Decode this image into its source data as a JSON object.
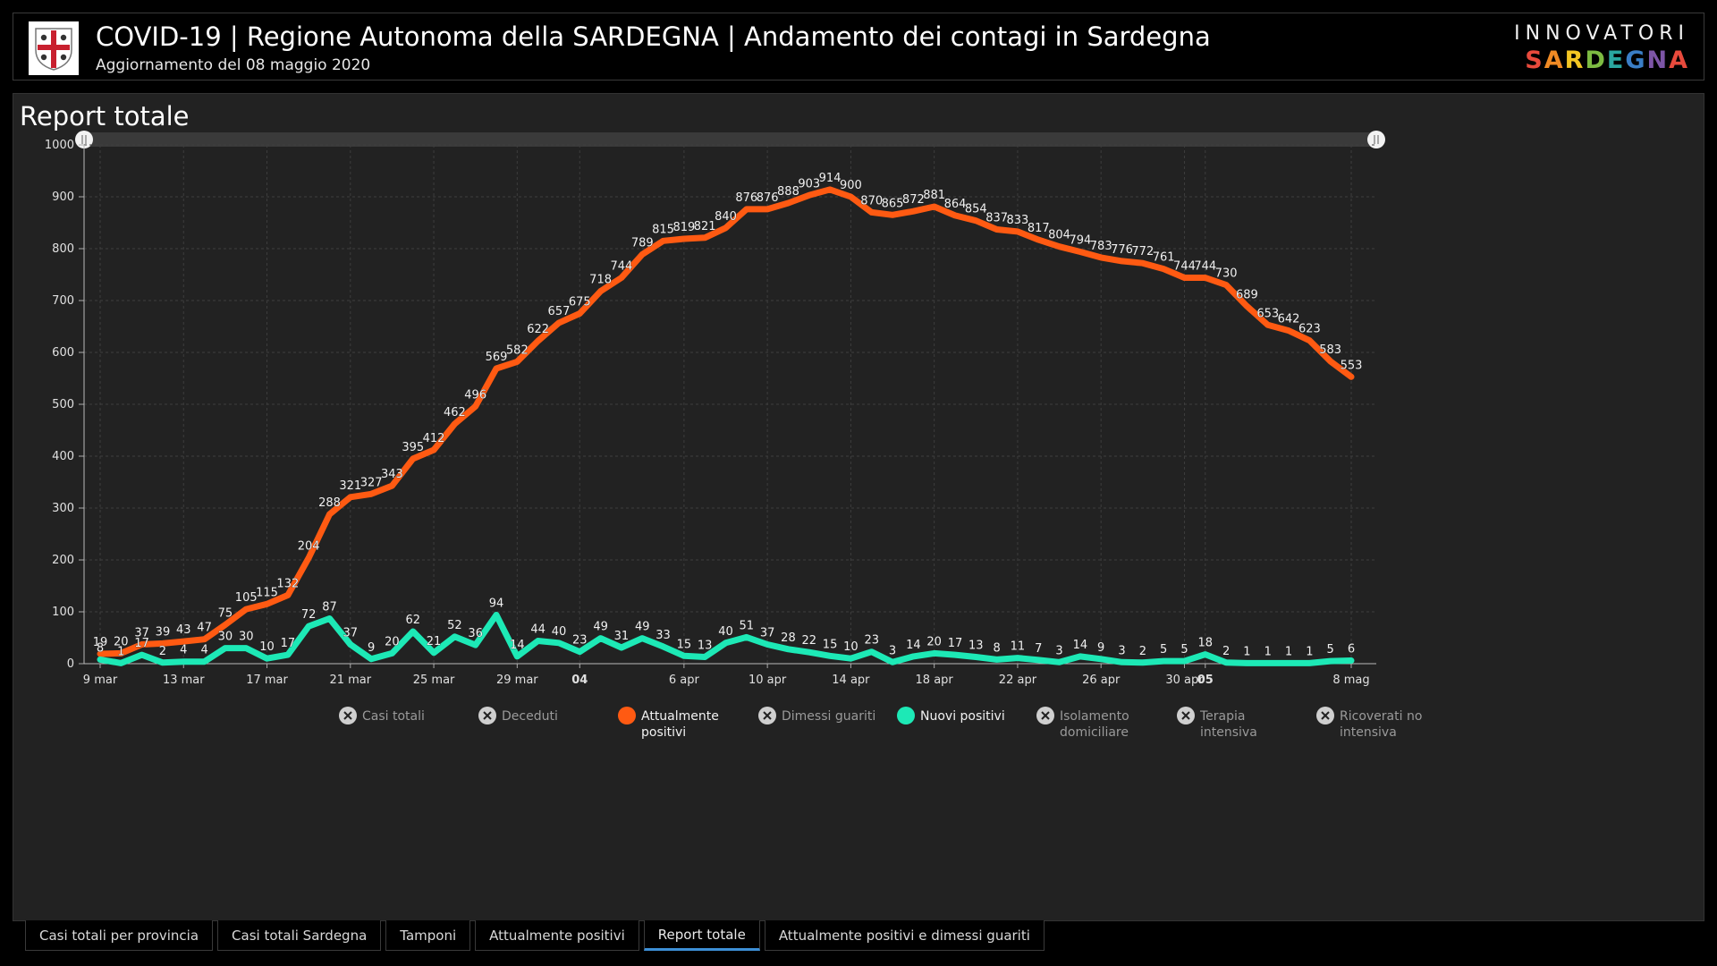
{
  "header": {
    "title": "COVID-19 | Regione Autonoma della SARDEGNA | Andamento dei contagi in Sardegna",
    "subtitle": "Aggiornamento del 08 maggio 2020",
    "brand_top": "INNOVATORI",
    "brand_bottom": "SARDEGNA",
    "brand_bottom_colors": [
      "#e84a3c",
      "#f08a24",
      "#f3c623",
      "#7dbb42",
      "#2aa7a0",
      "#3a7ec6",
      "#7d55a6",
      "#e84a3c"
    ],
    "logo_icon": "sardinia-coat-of-arms-icon"
  },
  "panel": {
    "title": "Report totale"
  },
  "legend": [
    {
      "label": "Casi totali",
      "active": false,
      "color": "#bdbdbd"
    },
    {
      "label": "Deceduti",
      "active": false,
      "color": "#bdbdbd"
    },
    {
      "label": "Attualmente positivi",
      "active": true,
      "color": "#ff5a12"
    },
    {
      "label": "Dimessi guariti",
      "active": false,
      "color": "#bdbdbd"
    },
    {
      "label": "Nuovi positivi",
      "active": true,
      "color": "#1de9b6"
    },
    {
      "label": "Isolamento domiciliare",
      "active": false,
      "color": "#bdbdbd"
    },
    {
      "label": "Terapia intensiva",
      "active": false,
      "color": "#bdbdbd"
    },
    {
      "label": "Ricoverati no intensiva",
      "active": false,
      "color": "#bdbdbd"
    }
  ],
  "tabs": [
    {
      "label": "Casi totali per provincia",
      "active": false
    },
    {
      "label": "Casi totali Sardegna",
      "active": false
    },
    {
      "label": "Tamponi",
      "active": false
    },
    {
      "label": "Attualmente positivi",
      "active": false
    },
    {
      "label": "Report totale",
      "active": true
    },
    {
      "label": "Attualmente positivi e dimessi guariti",
      "active": false
    }
  ],
  "chart_data": {
    "type": "line",
    "x_start": "2020-03-09",
    "x_end": "2020-05-08",
    "ylim": [
      0,
      1000
    ],
    "yticks": [
      0,
      100,
      200,
      300,
      400,
      500,
      600,
      700,
      800,
      900,
      1000
    ],
    "xticks": [
      {
        "date": "2020-03-09",
        "label": "9 mar",
        "bold": false
      },
      {
        "date": "2020-03-13",
        "label": "13 mar",
        "bold": false
      },
      {
        "date": "2020-03-17",
        "label": "17 mar",
        "bold": false
      },
      {
        "date": "2020-03-21",
        "label": "21 mar",
        "bold": false
      },
      {
        "date": "2020-03-25",
        "label": "25 mar",
        "bold": false
      },
      {
        "date": "2020-03-29",
        "label": "29 mar",
        "bold": false
      },
      {
        "date": "2020-04-01",
        "label": "04",
        "bold": true
      },
      {
        "date": "2020-04-06",
        "label": "6 apr",
        "bold": false
      },
      {
        "date": "2020-04-10",
        "label": "10 apr",
        "bold": false
      },
      {
        "date": "2020-04-14",
        "label": "14 apr",
        "bold": false
      },
      {
        "date": "2020-04-18",
        "label": "18 apr",
        "bold": false
      },
      {
        "date": "2020-04-22",
        "label": "22 apr",
        "bold": false
      },
      {
        "date": "2020-04-26",
        "label": "26 apr",
        "bold": false
      },
      {
        "date": "2020-04-30",
        "label": "30 apr",
        "bold": false
      },
      {
        "date": "2020-05-01",
        "label": "05",
        "bold": true
      },
      {
        "date": "2020-05-08",
        "label": "8 mag",
        "bold": false
      }
    ],
    "grid": true,
    "series": [
      {
        "name": "Attualmente positivi",
        "color": "#ff5a12",
        "values": [
          19,
          20,
          37,
          39,
          43,
          47,
          75,
          105,
          115,
          132,
          204,
          288,
          321,
          327,
          343,
          395,
          412,
          462,
          496,
          569,
          582,
          622,
          657,
          675,
          718,
          744,
          789,
          815,
          819,
          821,
          840,
          876,
          876,
          888,
          903,
          914,
          900,
          870,
          865,
          872,
          881,
          864,
          854,
          837,
          833,
          817,
          804,
          794,
          783,
          776,
          772,
          761,
          744,
          744,
          730,
          689,
          653,
          642,
          623,
          583,
          553
        ]
      },
      {
        "name": "Nuovi positivi",
        "color": "#1de9b6",
        "values": [
          8,
          1,
          17,
          2,
          4,
          4,
          30,
          30,
          10,
          17,
          72,
          87,
          37,
          9,
          20,
          62,
          21,
          52,
          36,
          94,
          14,
          44,
          40,
          23,
          49,
          31,
          49,
          33,
          15,
          13,
          40,
          51,
          37,
          28,
          22,
          15,
          10,
          23,
          3,
          14,
          20,
          17,
          13,
          8,
          11,
          7,
          3,
          14,
          9,
          3,
          2,
          5,
          5,
          18,
          2,
          1,
          1,
          1,
          1,
          5,
          6
        ]
      }
    ]
  }
}
